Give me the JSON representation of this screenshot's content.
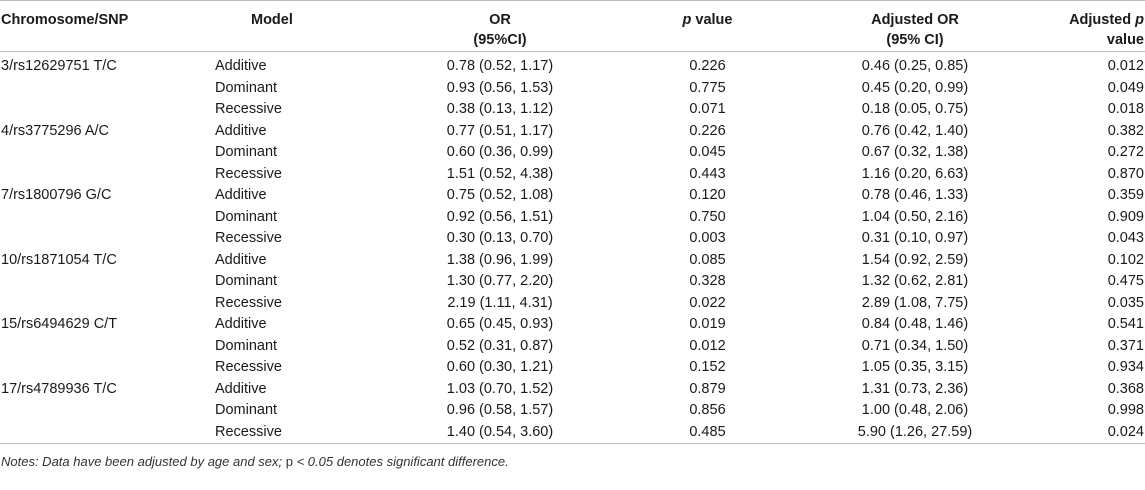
{
  "headers": {
    "col1": "Chromosome/SNP",
    "col2": "Model",
    "col3_line1": "OR",
    "col3_line2": "(95%CI)",
    "col4_italic": "p",
    "col4_rest": " value",
    "col5_line1": "Adjusted OR",
    "col5_line2": "(95% CI)",
    "col6_line1_a": "Adjusted ",
    "col6_line1_b": "p",
    "col6_line2": "value"
  },
  "rows": [
    {
      "snp": "3/rs12629751 T/C",
      "model": "Additive",
      "or": "0.78 (0.52, 1.17)",
      "p": "0.226",
      "aor": "0.46 (0.25, 0.85)",
      "ap": "0.012"
    },
    {
      "snp": "",
      "model": "Dominant",
      "or": "0.93 (0.56, 1.53)",
      "p": "0.775",
      "aor": "0.45 (0.20, 0.99)",
      "ap": "0.049"
    },
    {
      "snp": "",
      "model": "Recessive",
      "or": "0.38 (0.13, 1.12)",
      "p": "0.071",
      "aor": "0.18 (0.05, 0.75)",
      "ap": "0.018"
    },
    {
      "snp": "4/rs3775296 A/C",
      "model": "Additive",
      "or": "0.77 (0.51, 1.17)",
      "p": "0.226",
      "aor": "0.76 (0.42, 1.40)",
      "ap": "0.382"
    },
    {
      "snp": "",
      "model": "Dominant",
      "or": "0.60 (0.36, 0.99)",
      "p": "0.045",
      "aor": "0.67 (0.32, 1.38)",
      "ap": "0.272"
    },
    {
      "snp": "",
      "model": "Recessive",
      "or": "1.51 (0.52, 4.38)",
      "p": "0.443",
      "aor": "1.16 (0.20, 6.63)",
      "ap": "0.870"
    },
    {
      "snp": "7/rs1800796 G/C",
      "model": "Additive",
      "or": "0.75 (0.52, 1.08)",
      "p": "0.120",
      "aor": "0.78 (0.46, 1.33)",
      "ap": "0.359"
    },
    {
      "snp": "",
      "model": "Dominant",
      "or": "0.92 (0.56, 1.51)",
      "p": "0.750",
      "aor": "1.04 (0.50, 2.16)",
      "ap": "0.909"
    },
    {
      "snp": "",
      "model": "Recessive",
      "or": "0.30 (0.13, 0.70)",
      "p": "0.003",
      "aor": "0.31 (0.10, 0.97)",
      "ap": "0.043"
    },
    {
      "snp": "10/rs1871054 T/C",
      "model": "Additive",
      "or": "1.38 (0.96, 1.99)",
      "p": "0.085",
      "aor": "1.54 (0.92, 2.59)",
      "ap": "0.102"
    },
    {
      "snp": "",
      "model": "Dominant",
      "or": "1.30 (0.77, 2.20)",
      "p": "0.328",
      "aor": "1.32 (0.62, 2.81)",
      "ap": "0.475"
    },
    {
      "snp": "",
      "model": "Recessive",
      "or": "2.19 (1.11, 4.31)",
      "p": "0.022",
      "aor": "2.89 (1.08, 7.75)",
      "ap": "0.035"
    },
    {
      "snp": "15/rs6494629 C/T",
      "model": "Additive",
      "or": "0.65 (0.45, 0.93)",
      "p": "0.019",
      "aor": "0.84 (0.48, 1.46)",
      "ap": "0.541"
    },
    {
      "snp": "",
      "model": "Dominant",
      "or": "0.52 (0.31, 0.87)",
      "p": "0.012",
      "aor": "0.71 (0.34, 1.50)",
      "ap": "0.371"
    },
    {
      "snp": "",
      "model": "Recessive",
      "or": "0.60 (0.30, 1.21)",
      "p": "0.152",
      "aor": "1.05 (0.35, 3.15)",
      "ap": "0.934"
    },
    {
      "snp": "17/rs4789936 T/C",
      "model": "Additive",
      "or": "1.03 (0.70, 1.52)",
      "p": "0.879",
      "aor": "1.31 (0.73, 2.36)",
      "ap": "0.368"
    },
    {
      "snp": "",
      "model": "Dominant",
      "or": "0.96 (0.58, 1.57)",
      "p": "0.856",
      "aor": "1.00 (0.48, 2.06)",
      "ap": "0.998"
    },
    {
      "snp": "",
      "model": "Recessive",
      "or": "1.40 (0.54, 3.60)",
      "p": "0.485",
      "aor": "5.90 (1.26, 27.59)",
      "ap": "0.024"
    }
  ],
  "notes": {
    "prefix": "Notes: Data have been adjusted by age and sex; ",
    "p_plain": "p",
    "suffix": " < 0.05 denotes significant difference."
  }
}
